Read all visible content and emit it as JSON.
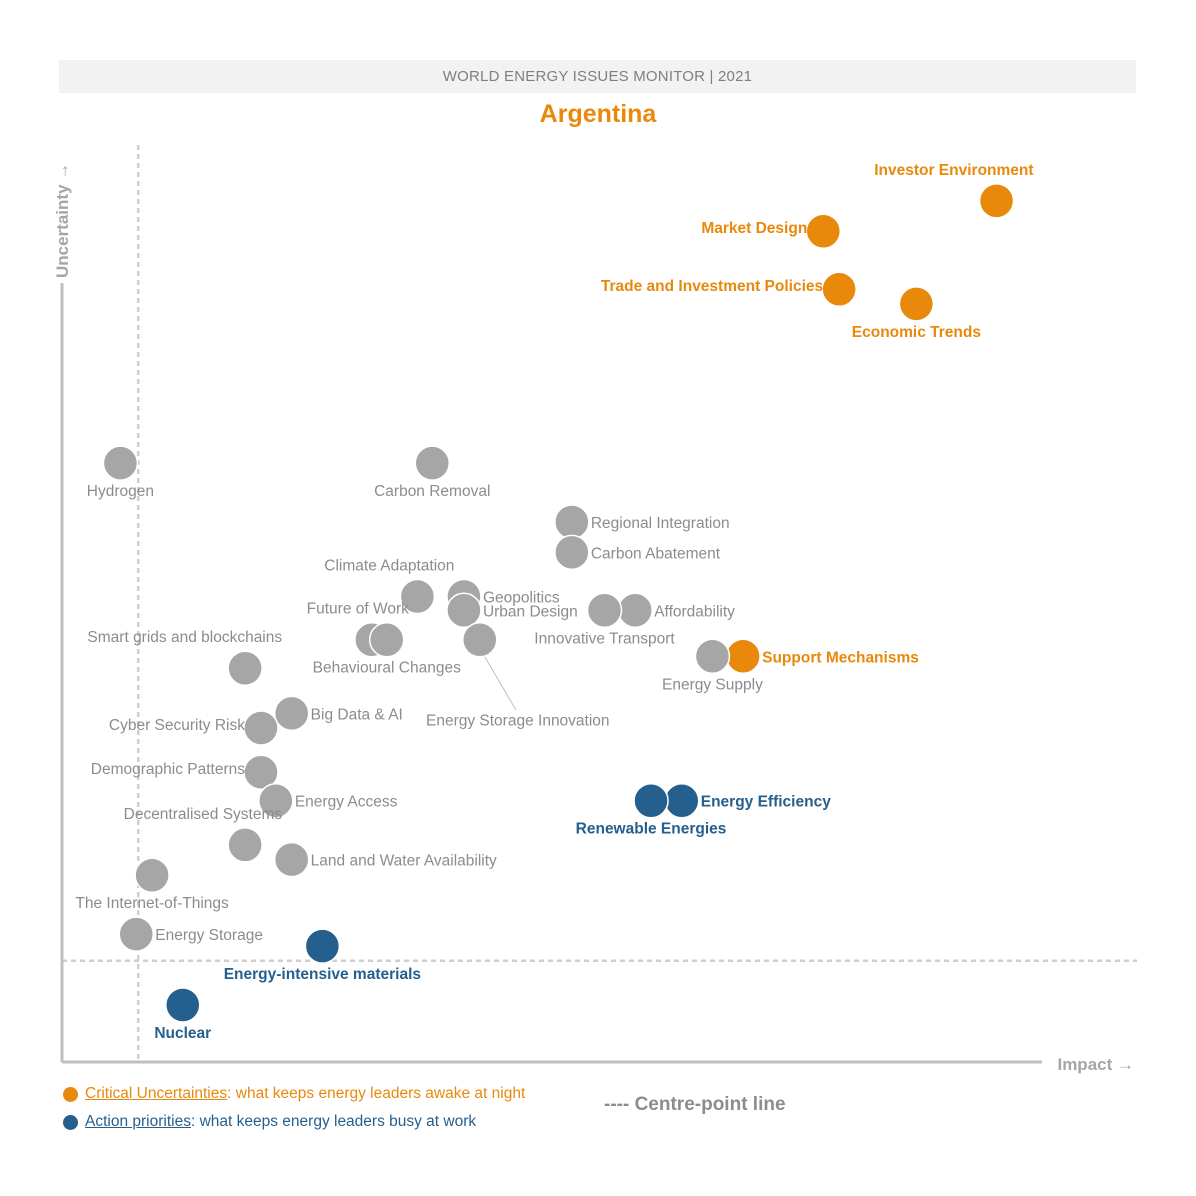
{
  "header": {
    "banner": "WORLD ENERGY ISSUES MONITOR | 2021",
    "country": "Argentina"
  },
  "colors": {
    "critical": "#e8890c",
    "action": "#255f8e",
    "weak": "#a6a6a6",
    "weak_text": "#8c8c8c"
  },
  "legend": {
    "critical_name": "Critical Uncertainties",
    "critical_desc": ": what keeps energy leaders awake at night",
    "action_name": "Action priorities",
    "action_desc": ": what keeps energy leaders busy at work",
    "centre_line": "---- Centre-point line"
  },
  "chart_data": {
    "type": "scatter",
    "title": "Argentina",
    "xlabel": "Impact →",
    "ylabel": "Uncertainty →",
    "xlim": [
      0,
      100
    ],
    "ylim": [
      0,
      100
    ],
    "centre_x": 7.7,
    "centre_y": 11.0,
    "points": [
      {
        "name": "Investor Environment",
        "x": 94.4,
        "y": 93.6,
        "group": "critical",
        "label_pos": "top-left"
      },
      {
        "name": "Market Design",
        "x": 76.9,
        "y": 90.3,
        "group": "critical",
        "label_pos": "left"
      },
      {
        "name": "Trade and Investment Policies",
        "x": 78.5,
        "y": 84.0,
        "group": "critical",
        "label_pos": "left"
      },
      {
        "name": "Economic Trends",
        "x": 86.3,
        "y": 82.4,
        "group": "critical",
        "label_pos": "bottom"
      },
      {
        "name": "Support Mechanisms",
        "x": 68.8,
        "y": 44.1,
        "group": "critical",
        "label_pos": "right"
      },
      {
        "name": "Energy Efficiency",
        "x": 62.6,
        "y": 28.4,
        "group": "action",
        "label_pos": "right"
      },
      {
        "name": "Renewable Energies",
        "x": 59.5,
        "y": 28.4,
        "group": "action",
        "label_pos": "bottom"
      },
      {
        "name": "Energy-intensive materials",
        "x": 26.3,
        "y": 12.6,
        "group": "action",
        "label_pos": "bottom"
      },
      {
        "name": "Nuclear",
        "x": 12.2,
        "y": 6.2,
        "group": "action",
        "label_pos": "bottom"
      },
      {
        "name": "Hydrogen",
        "x": 5.9,
        "y": 65.1,
        "group": "weak",
        "label_pos": "bottom"
      },
      {
        "name": "Carbon Removal",
        "x": 37.4,
        "y": 65.1,
        "group": "weak",
        "label_pos": "bottom"
      },
      {
        "name": "Regional Integration",
        "x": 51.5,
        "y": 58.7,
        "group": "weak",
        "label_pos": "right"
      },
      {
        "name": "Carbon Abatement",
        "x": 51.5,
        "y": 55.4,
        "group": "weak",
        "label_pos": "right"
      },
      {
        "name": "Climate Adaptation",
        "x": 35.9,
        "y": 50.6,
        "group": "weak",
        "label_pos": "top-left"
      },
      {
        "name": "Geopolitics",
        "x": 40.6,
        "y": 50.6,
        "group": "weak",
        "label_pos": "right"
      },
      {
        "name": "Urban Design",
        "x": 40.6,
        "y": 49.1,
        "group": "weak",
        "label_pos": "right"
      },
      {
        "name": "Affordability",
        "x": 57.9,
        "y": 49.1,
        "group": "weak",
        "label_pos": "right"
      },
      {
        "name": "Innovative Transport",
        "x": 54.8,
        "y": 49.1,
        "group": "weak",
        "label_pos": "bottom"
      },
      {
        "name": "Future of Work",
        "x": 31.3,
        "y": 45.9,
        "group": "weak",
        "label_pos": "top-left"
      },
      {
        "name": "Behavioural Changes",
        "x": 32.8,
        "y": 45.9,
        "group": "weak",
        "label_pos": "bottom"
      },
      {
        "name": "Energy Storage Innovation",
        "x": 42.2,
        "y": 45.9,
        "group": "weak",
        "label_pos": "leader"
      },
      {
        "name": "Energy Supply",
        "x": 65.7,
        "y": 44.1,
        "group": "weak",
        "label_pos": "bottom"
      },
      {
        "name": "Smart grids and blockchains",
        "x": 18.5,
        "y": 42.8,
        "group": "weak",
        "label_pos": "top-left"
      },
      {
        "name": "Big Data & AI",
        "x": 23.2,
        "y": 37.9,
        "group": "weak",
        "label_pos": "right"
      },
      {
        "name": "Cyber Security Risk",
        "x": 20.1,
        "y": 36.3,
        "group": "weak",
        "label_pos": "left"
      },
      {
        "name": "Demographic Patterns",
        "x": 20.1,
        "y": 31.5,
        "group": "weak",
        "label_pos": "left"
      },
      {
        "name": "Energy Access",
        "x": 21.6,
        "y": 28.4,
        "group": "weak",
        "label_pos": "right"
      },
      {
        "name": "Decentralised Systems",
        "x": 18.5,
        "y": 23.6,
        "group": "weak",
        "label_pos": "top-left"
      },
      {
        "name": "Land and Water Availability",
        "x": 23.2,
        "y": 22.0,
        "group": "weak",
        "label_pos": "right"
      },
      {
        "name": "The Internet-of-Things",
        "x": 9.1,
        "y": 20.3,
        "group": "weak",
        "label_pos": "bottom"
      },
      {
        "name": "Energy Storage",
        "x": 7.5,
        "y": 13.9,
        "group": "weak",
        "label_pos": "right"
      }
    ]
  }
}
